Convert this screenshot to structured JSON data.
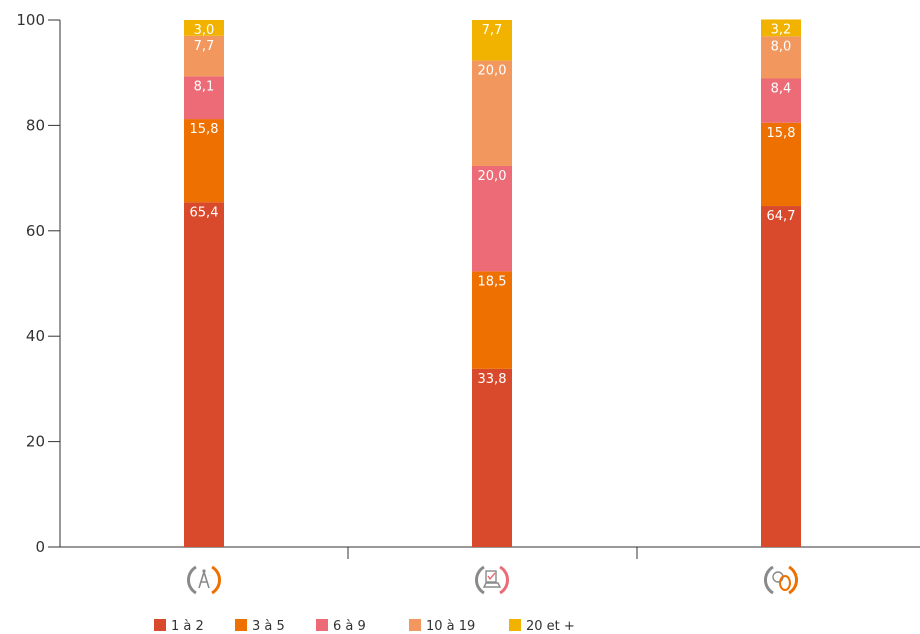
{
  "chart_data": {
    "type": "bar",
    "stacked": true,
    "categories": [
      "architecture-icon",
      "vehicle-inspection-icon",
      "tire-service-icon"
    ],
    "ylim": [
      0,
      100
    ],
    "yticks": [
      0,
      20,
      40,
      60,
      80,
      100
    ],
    "legend_position": "bottom",
    "series": [
      {
        "name": "1 à 2",
        "color": "#d94a2c",
        "values": [
          65.4,
          33.8,
          64.7
        ],
        "labels": [
          "65,4",
          "33,8",
          "64,7"
        ]
      },
      {
        "name": "3 à 5",
        "color": "#ee7000",
        "values": [
          15.8,
          18.5,
          15.8
        ],
        "labels": [
          "15,8",
          "18,5",
          "15,8"
        ]
      },
      {
        "name": "6 à 9",
        "color": "#ec6b77",
        "values": [
          8.1,
          20.0,
          8.4
        ],
        "labels": [
          "8,1",
          "20,0",
          "8,4"
        ]
      },
      {
        "name": "10 à 19",
        "color": "#f2975e",
        "values": [
          7.7,
          20.0,
          8.0
        ],
        "labels": [
          "7,7",
          "20,0",
          "8,0"
        ]
      },
      {
        "name": "20 et +",
        "color": "#f1b300",
        "values": [
          3.0,
          7.7,
          3.2
        ],
        "labels": [
          "3,0",
          "7,7",
          "3,2"
        ]
      }
    ]
  }
}
